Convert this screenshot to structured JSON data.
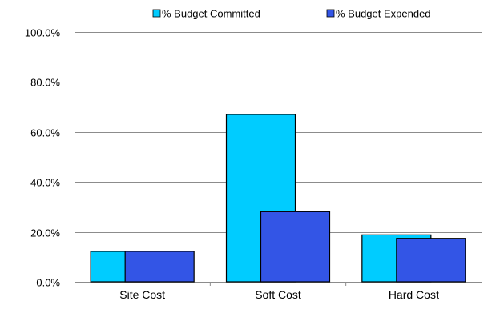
{
  "chart_data": {
    "type": "bar",
    "categories": [
      "Site Cost",
      "Soft Cost",
      "Hard Cost"
    ],
    "series": [
      {
        "name": "% Budget Committed",
        "values": [
          12.2,
          67.0,
          18.8
        ],
        "color": "#00ccff"
      },
      {
        "name": "% Budget Expended",
        "values": [
          12.2,
          28.1,
          17.4
        ],
        "color": "#3355e6"
      }
    ],
    "ylim": [
      0,
      100
    ],
    "yticks": [
      0,
      20,
      40,
      60,
      80,
      100
    ],
    "ytick_labels": [
      "0.0%",
      "20.0%",
      "40.0%",
      "60.0%",
      "80.0%",
      "100.0%"
    ],
    "grid": true,
    "legend_position": "top-right",
    "title": "",
    "xlabel": "",
    "ylabel": ""
  }
}
